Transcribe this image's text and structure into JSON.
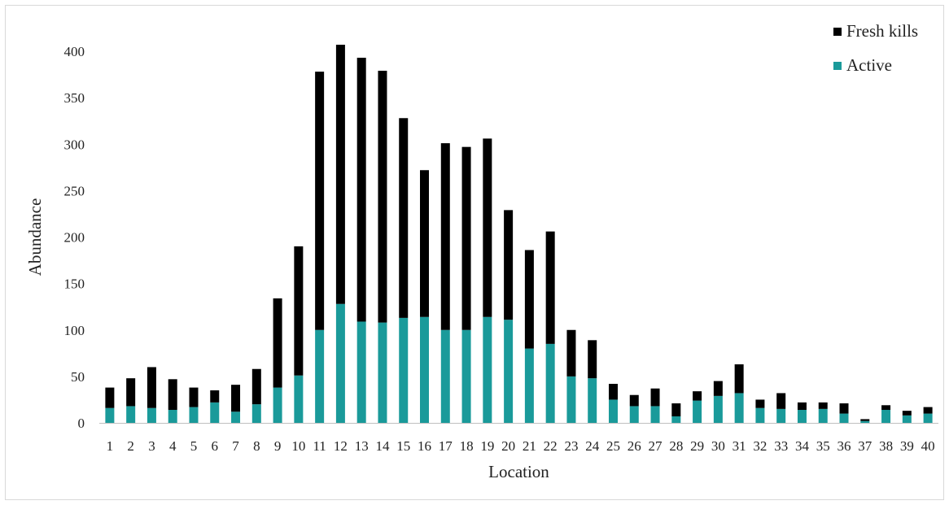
{
  "chart_data": {
    "type": "bar",
    "stacked": true,
    "title": "",
    "xlabel": "Location",
    "ylabel": "Abundance",
    "ylim": [
      0,
      400
    ],
    "yticks": [
      0,
      50,
      100,
      150,
      200,
      250,
      300,
      350,
      400
    ],
    "grid": false,
    "legend_position": "top-right",
    "categories": [
      "1",
      "2",
      "3",
      "4",
      "5",
      "6",
      "7",
      "8",
      "9",
      "10",
      "11",
      "12",
      "13",
      "14",
      "15",
      "16",
      "17",
      "18",
      "19",
      "20",
      "21",
      "22",
      "23",
      "24",
      "25",
      "26",
      "27",
      "28",
      "29",
      "30",
      "31",
      "32",
      "33",
      "34",
      "35",
      "36",
      "37",
      "38",
      "39",
      "40"
    ],
    "series": [
      {
        "name": "Active",
        "color": "#1a9a9a",
        "values": [
          16,
          18,
          16,
          14,
          17,
          22,
          12,
          20,
          38,
          51,
          100,
          128,
          109,
          108,
          113,
          114,
          100,
          100,
          114,
          111,
          80,
          85,
          50,
          48,
          25,
          18,
          18,
          7,
          24,
          29,
          32,
          16,
          15,
          14,
          15,
          10,
          2,
          14,
          8,
          10
        ]
      },
      {
        "name": "Fresh kills",
        "color": "#000000",
        "values": [
          22,
          30,
          44,
          33,
          21,
          13,
          29,
          38,
          96,
          139,
          278,
          279,
          284,
          271,
          215,
          158,
          201,
          197,
          192,
          118,
          106,
          121,
          50,
          41,
          17,
          12,
          19,
          14,
          10,
          16,
          31,
          9,
          17,
          8,
          7,
          11,
          2,
          5,
          5,
          7
        ]
      }
    ]
  }
}
